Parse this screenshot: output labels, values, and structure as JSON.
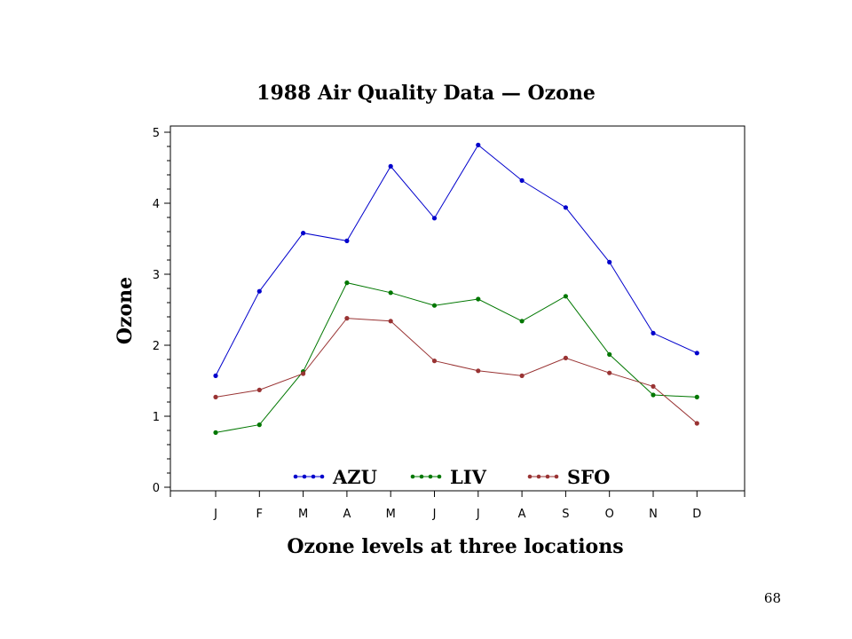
{
  "page_number": "68",
  "chart_data": {
    "type": "line",
    "title": "1988 Air Quality Data — Ozone",
    "xlabel": "Ozone levels at three locations",
    "ylabel": "Ozone",
    "categories": [
      "J",
      "F",
      "M",
      "A",
      "M",
      "J",
      "J",
      "A",
      "S",
      "O",
      "N",
      "D"
    ],
    "ylim": [
      0,
      5
    ],
    "yticks": [
      "0",
      "1",
      "2",
      "3",
      "4",
      "5"
    ],
    "grid": false,
    "legend": "bottom-inside",
    "series": [
      {
        "name": "AZU",
        "color": "#0000cc",
        "values": [
          1.57,
          2.76,
          3.58,
          3.47,
          4.52,
          3.79,
          4.82,
          4.32,
          3.94,
          3.17,
          2.17,
          1.89
        ]
      },
      {
        "name": "LIV",
        "color": "#007700",
        "values": [
          0.77,
          0.88,
          1.63,
          2.88,
          2.74,
          2.56,
          2.65,
          2.34,
          2.69,
          1.87,
          1.3,
          1.27
        ]
      },
      {
        "name": "SFO",
        "color": "#993333",
        "values": [
          1.27,
          1.37,
          1.6,
          2.38,
          2.34,
          1.78,
          1.64,
          1.57,
          1.82,
          1.61,
          1.42,
          0.9
        ]
      }
    ]
  }
}
